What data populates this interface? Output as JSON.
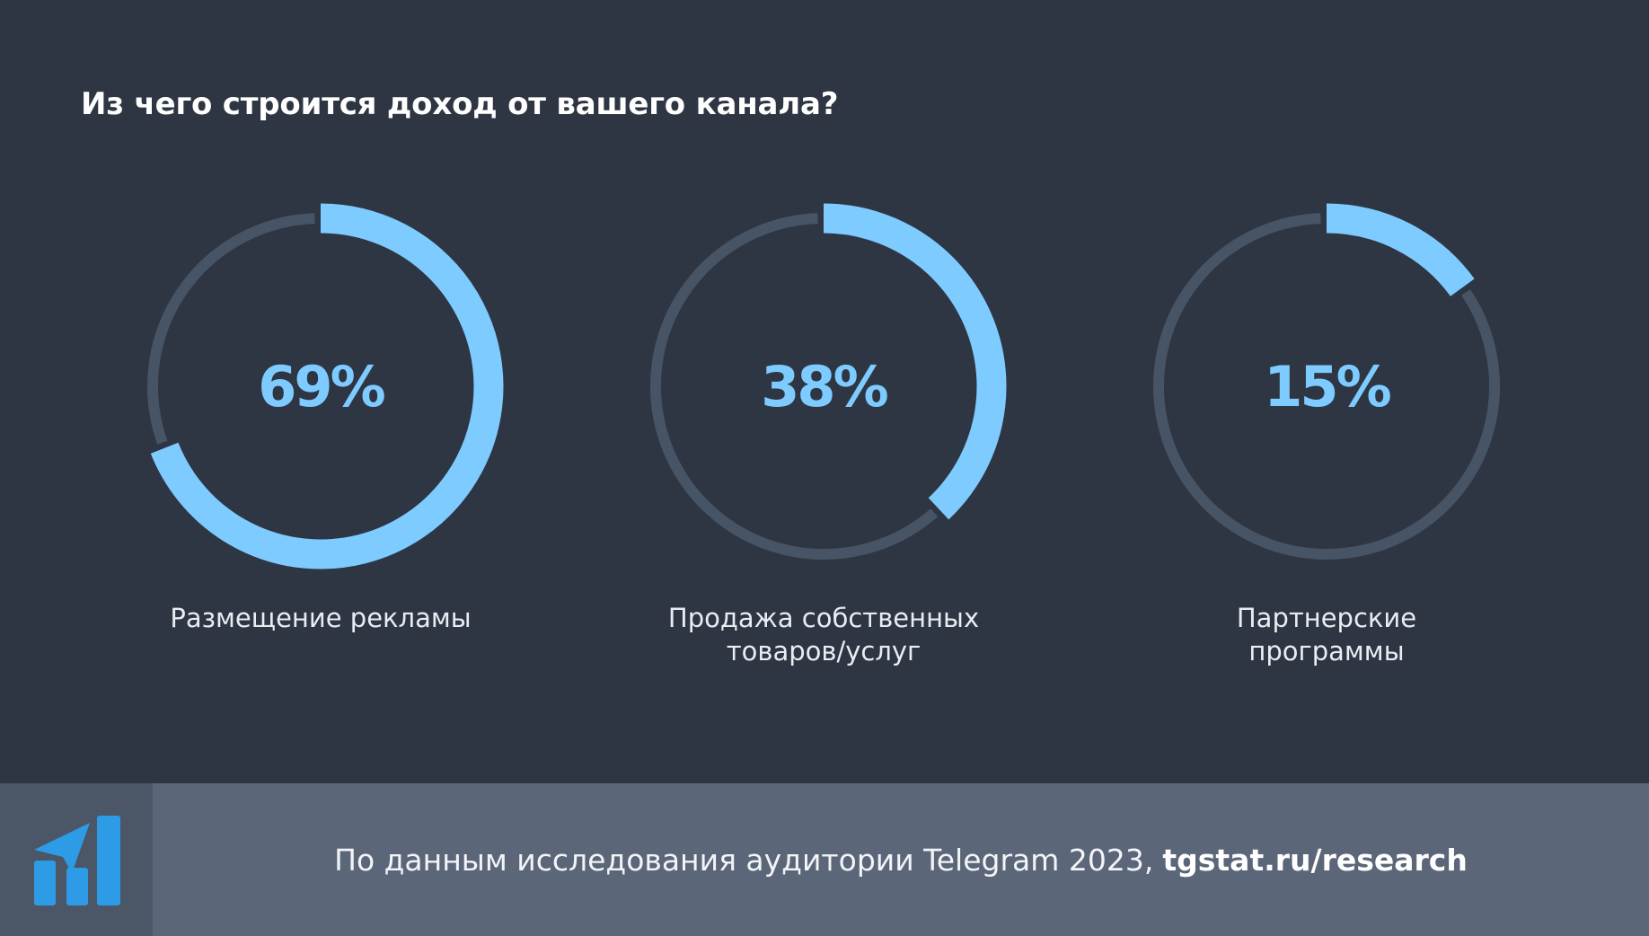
{
  "chart_data": {
    "type": "donut",
    "title": "Из чего строится доход от вашего канала?",
    "track_color": "#465465",
    "fill_color": "#7ecbff",
    "items": [
      {
        "label": "Размещение рекламы",
        "value": 69,
        "display": "69%"
      },
      {
        "label": "Продажа собственных\nтоваров/услуг",
        "value": 38,
        "display": "38%"
      },
      {
        "label": "Партнерские\nпрограммы",
        "value": 15,
        "display": "15%"
      }
    ]
  },
  "footer": {
    "source_text": "По данным исследования аудитории Telegram 2023,",
    "link_text": "tgstat.ru/research",
    "logo_icon": "tgstat-logo-icon",
    "logo_color": "#2e9be6"
  }
}
